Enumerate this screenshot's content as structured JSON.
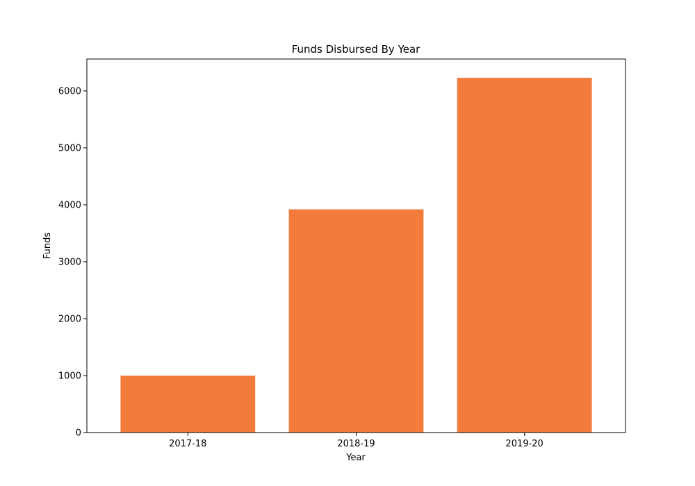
{
  "chart_data": {
    "type": "bar",
    "title": "Funds Disbursed By Year",
    "xlabel": "Year",
    "ylabel": "Funds",
    "categories": [
      "2017-18",
      "2018-19",
      "2019-20"
    ],
    "values": [
      1000,
      3920,
      6230
    ],
    "ylim": [
      0,
      6560
    ],
    "yticks": [
      0,
      1000,
      2000,
      3000,
      4000,
      5000,
      6000
    ],
    "bar_color": "#f37b3c",
    "grid": false,
    "legend": "none"
  }
}
